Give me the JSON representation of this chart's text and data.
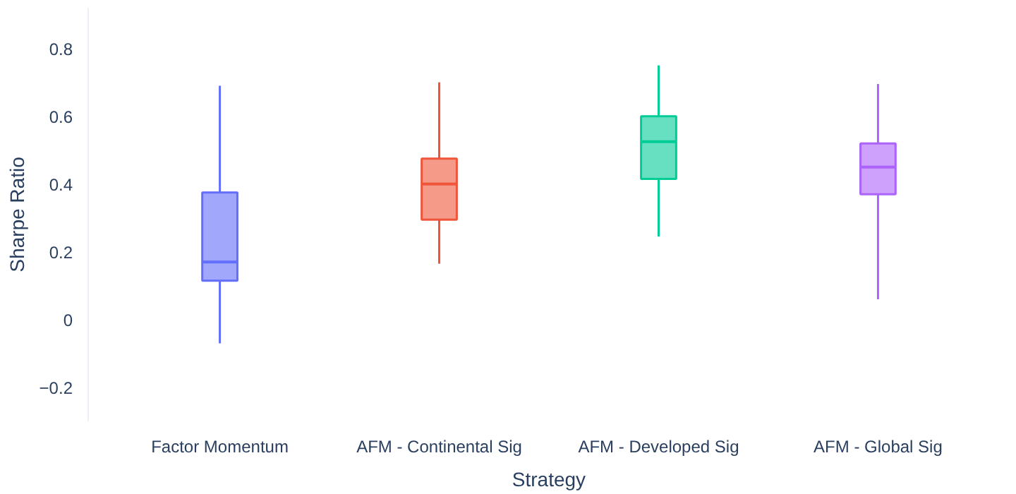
{
  "chart_data": {
    "type": "box",
    "xlabel": "Strategy",
    "ylabel": "Sharpe Ratio",
    "categories": [
      "Factor Momentum",
      "AFM - Continental Sig",
      "AFM - Developed Sig",
      "AFM - Global Sig"
    ],
    "colors": [
      "#636efa",
      "#ef553b",
      "#00cc96",
      "#ab63fa"
    ],
    "boxes": [
      {
        "low": -0.07,
        "q1": 0.115,
        "median": 0.17,
        "q3": 0.375,
        "high": 0.69
      },
      {
        "low": 0.165,
        "q1": 0.295,
        "median": 0.4,
        "q3": 0.475,
        "high": 0.7
      },
      {
        "low": 0.245,
        "q1": 0.415,
        "median": 0.525,
        "q3": 0.6,
        "high": 0.75
      },
      {
        "low": 0.06,
        "q1": 0.37,
        "median": 0.45,
        "q3": 0.52,
        "high": 0.695
      }
    ],
    "ylim": [
      -0.3,
      0.92
    ],
    "yticks": [
      {
        "value": -0.2,
        "label": "−0.2"
      },
      0,
      0.2,
      0.4,
      0.6,
      0.8
    ],
    "grid": false
  }
}
